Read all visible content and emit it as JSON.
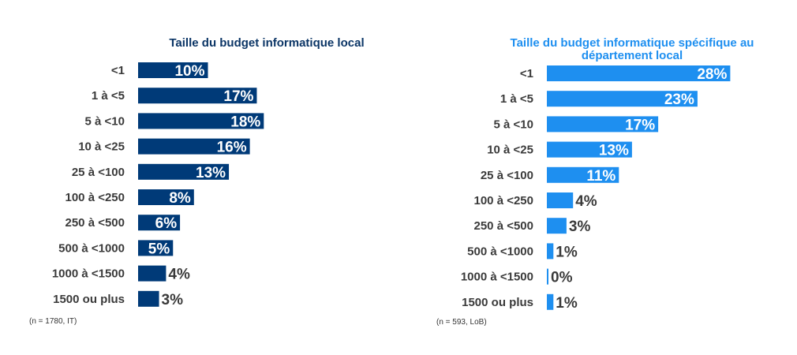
{
  "chart_data": [
    {
      "type": "bar",
      "orientation": "horizontal",
      "title": "Taille du budget informatique local",
      "color": "#003a78",
      "categories": [
        "<1",
        "1 à <5",
        "5 à <10",
        "10 à <25",
        "25 à <100",
        "100 à <250",
        "250 à <500",
        "500 à <1000",
        "1000 à <1500",
        "1500 ou plus"
      ],
      "values": [
        10,
        17,
        18,
        16,
        13,
        8,
        6,
        5,
        4,
        3
      ],
      "value_suffix": "%",
      "note": "(n = 1780, IT)"
    },
    {
      "type": "bar",
      "orientation": "horizontal",
      "title": "Taille du budget informatique spécifique au département local",
      "title_lines": [
        "Taille du budget informatique spécifique au",
        "département local"
      ],
      "color": "#1e8ff0",
      "categories": [
        "<1",
        "1 à <5",
        "5 à <10",
        "10 à <25",
        "25 à <100",
        "100 à <250",
        "250 à <500",
        "500 à <1000",
        "1000 à <1500",
        "1500 ou plus"
      ],
      "values": [
        28,
        23,
        17,
        13,
        11,
        4,
        3,
        1,
        0,
        1
      ],
      "value_suffix": "%",
      "note": "(n = 593, LoB)"
    }
  ]
}
